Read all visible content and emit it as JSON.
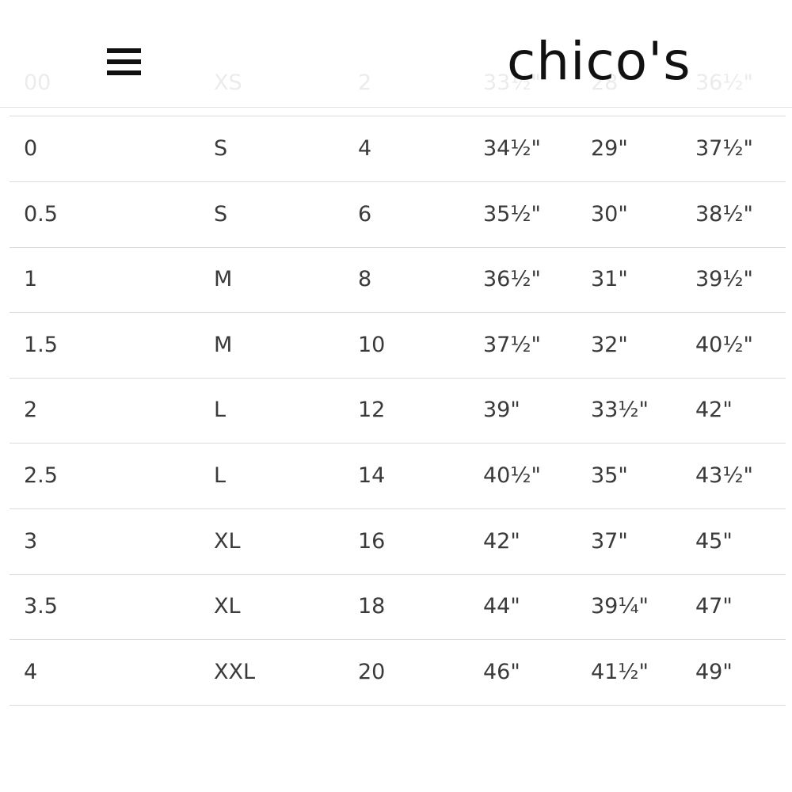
{
  "header": {
    "logo": "chico's"
  },
  "table": {
    "rows": [
      [
        "00",
        "XS",
        "2",
        "33½\"",
        "28\"",
        "36½\""
      ],
      [
        "0",
        "S",
        "4",
        "34½\"",
        "29\"",
        "37½\""
      ],
      [
        "0.5",
        "S",
        "6",
        "35½\"",
        "30\"",
        "38½\""
      ],
      [
        "1",
        "M",
        "8",
        "36½\"",
        "31\"",
        "39½\""
      ],
      [
        "1.5",
        "M",
        "10",
        "37½\"",
        "32\"",
        "40½\""
      ],
      [
        "2",
        "L",
        "12",
        "39\"",
        "33½\"",
        "42\""
      ],
      [
        "2.5",
        "L",
        "14",
        "40½\"",
        "35\"",
        "43½\""
      ],
      [
        "3",
        "XL",
        "16",
        "42\"",
        "37\"",
        "45\""
      ],
      [
        "3.5",
        "XL",
        "18",
        "44\"",
        "39¼\"",
        "47\""
      ],
      [
        "4",
        "XXL",
        "20",
        "46\"",
        "41½\"",
        "49\""
      ]
    ]
  }
}
